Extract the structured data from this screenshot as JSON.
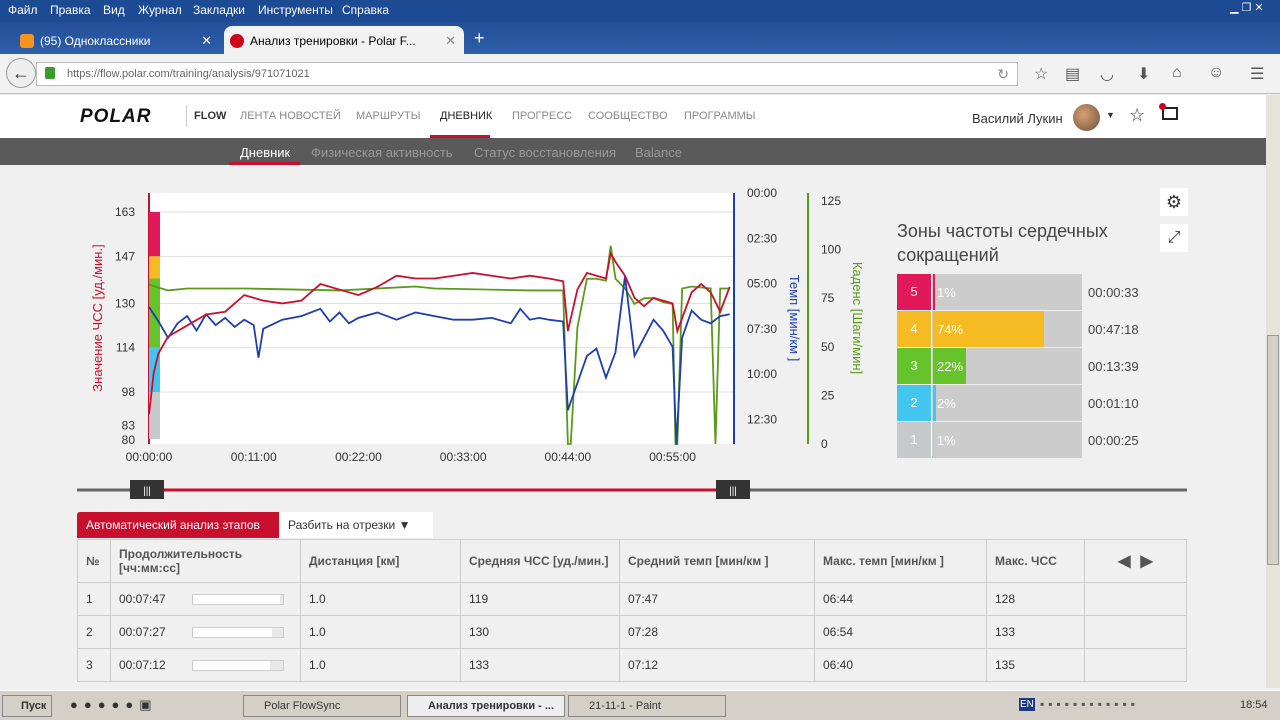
{
  "browser": {
    "menu": [
      "Файл",
      "Правка",
      "Вид",
      "Журнал",
      "Закладки",
      "Инструменты",
      "Справка"
    ],
    "tabs": [
      {
        "label": "(95) Одноклассники",
        "icon": "odnoklassniki-icon"
      },
      {
        "label": "Анализ тренировки - Polar F...",
        "icon": "polar-icon"
      }
    ],
    "url": "https://flow.polar.com/training/analysis/971071021"
  },
  "site": {
    "logo": "POLAR",
    "flow": "FLOW",
    "nav": [
      "ЛЕНТА НОВОСТЕЙ",
      "МАРШРУТЫ",
      "ДНЕВНИК",
      "ПРОГРЕСС",
      "СООБЩЕСТВО",
      "ПРОГРАММЫ"
    ],
    "nav_active": "ДНЕВНИК",
    "user": "Василий Лукин",
    "subnav": [
      "Дневник",
      "Физическая активность",
      "Статус восстановления",
      "Balance"
    ]
  },
  "chart_data": {
    "type": "line",
    "x_unit": "minutes",
    "x_ticks": [
      "00:00:00",
      "00:11:00",
      "00:22:00",
      "00:33:00",
      "00:44:00",
      "00:55:00"
    ],
    "xlim": [
      0,
      61.5
    ],
    "y_left": {
      "label": "Значение ЧСС [уд./мин.]",
      "ticks": [
        "163",
        "147",
        "130",
        "114",
        "98",
        "83",
        "80"
      ],
      "color": "#c8102e"
    },
    "y_pace": {
      "label": "Темп [мин/км ]",
      "ticks": [
        "00:00",
        "02:30",
        "05:00",
        "07:30",
        "10:00",
        "12:30"
      ],
      "color": "#1f3fa8"
    },
    "y_cadence": {
      "label": "Каденс [Шаги/мин]",
      "ticks": [
        "125",
        "100",
        "75",
        "50",
        "25",
        "0"
      ],
      "color": "#5a9a1a"
    },
    "hr_zone_bands": [
      {
        "zone": 5,
        "from": 147,
        "to": 163,
        "color": "#e0195a"
      },
      {
        "zone": 4,
        "from": 139,
        "to": 147,
        "color": "#f6bb22"
      },
      {
        "zone": 3,
        "from": 114,
        "to": 139,
        "color": "#66c32b"
      },
      {
        "zone": 2,
        "from": 98,
        "to": 114,
        "color": "#42c5ee"
      },
      {
        "zone": 1,
        "from": 81,
        "to": 98,
        "color": "#c6c9ca"
      }
    ],
    "series": [
      {
        "key": "hr",
        "axis": "hr",
        "color": "#c8102e",
        "points": [
          [
            0,
            90
          ],
          [
            0.5,
            105
          ],
          [
            1,
            112
          ],
          [
            2,
            118
          ],
          [
            4,
            122
          ],
          [
            6,
            126
          ],
          [
            8,
            127
          ],
          [
            10,
            133
          ],
          [
            12,
            131
          ],
          [
            14,
            130
          ],
          [
            16,
            131
          ],
          [
            18,
            137
          ],
          [
            20,
            135
          ],
          [
            22,
            133
          ],
          [
            24,
            136
          ],
          [
            26,
            140
          ],
          [
            28,
            139
          ],
          [
            30,
            139
          ],
          [
            32,
            140
          ],
          [
            34,
            141
          ],
          [
            36,
            140
          ],
          [
            38,
            139
          ],
          [
            40,
            140
          ],
          [
            42,
            139
          ],
          [
            43.5,
            138
          ],
          [
            44,
            120
          ],
          [
            45,
            135
          ],
          [
            46,
            141
          ],
          [
            47,
            140
          ],
          [
            48,
            139
          ],
          [
            48.5,
            148
          ],
          [
            49,
            145
          ],
          [
            50,
            140
          ],
          [
            51,
            132
          ],
          [
            52,
            129
          ],
          [
            53,
            132
          ],
          [
            54,
            131
          ],
          [
            55,
            130
          ],
          [
            55.5,
            120
          ],
          [
            57,
            134
          ],
          [
            58,
            137
          ],
          [
            59,
            134
          ],
          [
            60,
            127
          ],
          [
            61,
            136
          ]
        ]
      },
      {
        "key": "pace",
        "axis": "pace",
        "color": "#1f3fa8",
        "points": [
          [
            0,
            6.3
          ],
          [
            1,
            7.1
          ],
          [
            2,
            8
          ],
          [
            3,
            7.2
          ],
          [
            4,
            6.8
          ],
          [
            5,
            7.6
          ],
          [
            6,
            6.7
          ],
          [
            7,
            7.3
          ],
          [
            8,
            6.9
          ],
          [
            9,
            7.4
          ],
          [
            10,
            7.0
          ],
          [
            11,
            7.3
          ],
          [
            11.5,
            9.1
          ],
          [
            12,
            7.5
          ],
          [
            14,
            7.0
          ],
          [
            16,
            6.8
          ],
          [
            18,
            6.4
          ],
          [
            19,
            7.1
          ],
          [
            20,
            6.6
          ],
          [
            21,
            7.2
          ],
          [
            22,
            6.9
          ],
          [
            24,
            6.6
          ],
          [
            26,
            7.0
          ],
          [
            28,
            6.6
          ],
          [
            30,
            6.8
          ],
          [
            32,
            7.0
          ],
          [
            34,
            7.0
          ],
          [
            36,
            6.9
          ],
          [
            38,
            7.2
          ],
          [
            39,
            6.4
          ],
          [
            40,
            7.0
          ],
          [
            41,
            6.9
          ],
          [
            42,
            7.0
          ],
          [
            43.5,
            7.1
          ],
          [
            44,
            12.0
          ],
          [
            45,
            10.5
          ],
          [
            46,
            9.0
          ],
          [
            47,
            8.6
          ],
          [
            48,
            10.2
          ],
          [
            49,
            8.8
          ],
          [
            50,
            4.6
          ],
          [
            51,
            9.0
          ],
          [
            52,
            8.0
          ],
          [
            53,
            7.0
          ],
          [
            54,
            7.6
          ],
          [
            55,
            8.5
          ],
          [
            55.4,
            13.9
          ],
          [
            56,
            8.0
          ],
          [
            57,
            6.5
          ],
          [
            58,
            7.0
          ],
          [
            59,
            7.2
          ],
          [
            60,
            6.8
          ],
          [
            61,
            6.7
          ]
        ]
      },
      {
        "key": "cadence",
        "axis": "cadence",
        "color": "#5a9a1a",
        "points": [
          [
            0,
            82
          ],
          [
            2,
            79
          ],
          [
            4,
            80
          ],
          [
            10,
            80
          ],
          [
            20,
            79
          ],
          [
            28,
            81
          ],
          [
            30,
            80
          ],
          [
            40,
            79
          ],
          [
            43.5,
            79
          ],
          [
            44,
            0
          ],
          [
            44.3,
            0
          ],
          [
            45,
            60
          ],
          [
            46,
            85
          ],
          [
            47,
            85
          ],
          [
            48,
            84
          ],
          [
            48.5,
            102
          ],
          [
            49,
            85
          ],
          [
            50,
            80
          ],
          [
            51,
            72
          ],
          [
            52,
            75
          ],
          [
            53,
            75
          ],
          [
            54,
            73
          ],
          [
            55,
            72
          ],
          [
            55.3,
            0
          ],
          [
            55.5,
            0
          ],
          [
            56,
            80
          ],
          [
            57,
            81
          ],
          [
            59,
            80
          ],
          [
            59.5,
            0
          ],
          [
            60,
            80
          ],
          [
            61,
            80
          ]
        ]
      }
    ],
    "grid": true
  },
  "zones": {
    "title": "Зоны частоты сердечных сокращений",
    "rows": [
      {
        "zone": "5",
        "pct": "1%",
        "fraction": 0.01,
        "time": "00:00:33",
        "color": "#e0195a"
      },
      {
        "zone": "4",
        "pct": "74%",
        "fraction": 0.74,
        "time": "00:47:18",
        "color": "#f6bb22"
      },
      {
        "zone": "3",
        "pct": "22%",
        "fraction": 0.22,
        "time": "00:13:39",
        "color": "#66c32b"
      },
      {
        "zone": "2",
        "pct": "2%",
        "fraction": 0.02,
        "time": "00:01:10",
        "color": "#42c5ee"
      },
      {
        "zone": "1",
        "pct": "1%",
        "fraction": 0.01,
        "time": "00:00:25",
        "color": "#c6c9ca"
      }
    ]
  },
  "laps": {
    "auto_label": "Автоматический анализ этапов",
    "split_label": "Разбить на отрезки",
    "headers": [
      "№",
      "Продолжительность [чч:мм:сс]",
      "Дистанция [км]",
      "Средняя ЧСС [уд./мин.]",
      "Средний темп [мин/км ]",
      "Макс. темп [мин/км ]",
      "Макс. ЧСС"
    ],
    "rows": [
      {
        "n": "1",
        "dur": "00:07:47",
        "fraction": 0.97,
        "dist": "1.0",
        "avg_hr": "119",
        "avg_pace": "07:47",
        "max_pace": "06:44",
        "max_hr": "128"
      },
      {
        "n": "2",
        "dur": "00:07:27",
        "fraction": 0.88,
        "dist": "1.0",
        "avg_hr": "130",
        "avg_pace": "07:28",
        "max_pace": "06:54",
        "max_hr": "133"
      },
      {
        "n": "3",
        "dur": "00:07:12",
        "fraction": 0.86,
        "dist": "1.0",
        "avg_hr": "133",
        "avg_pace": "07:12",
        "max_pace": "06:40",
        "max_hr": "135"
      }
    ]
  },
  "taskbar": {
    "start": "Пуск",
    "tasks": [
      "Polar FlowSync",
      "Анализ тренировки - ...",
      "21-11-1 - Paint"
    ],
    "lang": "EN",
    "clock": "18:54"
  }
}
